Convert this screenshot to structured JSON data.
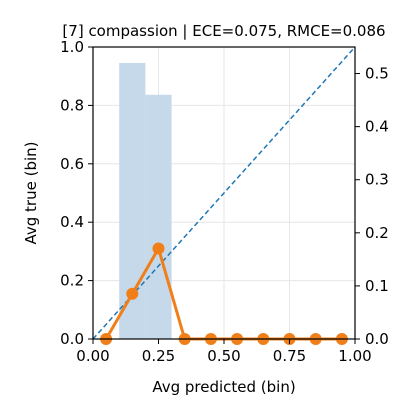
{
  "chart_data": {
    "type": "line",
    "title": "[7] compassion | ECE=0.075, RMCE=0.086",
    "xlabel": "Avg predicted (bin)",
    "ylabel": "Avg true (bin)",
    "xlim": [
      0,
      1
    ],
    "ylim": [
      0,
      1
    ],
    "y2lim": [
      0,
      0.55
    ],
    "grid": true,
    "x_ticks": [
      "0.00",
      "0.25",
      "0.50",
      "0.75",
      "1.00"
    ],
    "y_ticks": [
      "0.0",
      "0.2",
      "0.4",
      "0.6",
      "0.8",
      "1.0"
    ],
    "y2_ticks": [
      "0.0",
      "0.1",
      "0.2",
      "0.3",
      "0.4",
      "0.5"
    ],
    "histogram": {
      "axis": "secondary",
      "bin_edges": [
        0.1,
        0.2,
        0.3
      ],
      "values": [
        0.52,
        0.46
      ],
      "color": "#c6d9ea"
    },
    "diagonal": {
      "from": [
        0,
        0
      ],
      "to": [
        1,
        1
      ],
      "color": "#1f77b4"
    },
    "series": [
      {
        "color": "#f07f1a",
        "x": [
          0.05,
          0.15,
          0.25,
          0.35,
          0.45,
          0.55,
          0.65,
          0.75,
          0.85,
          0.95
        ],
        "y": [
          0.0,
          0.155,
          0.31,
          0.0,
          0.0,
          0.0,
          0.0,
          0.0,
          0.0,
          0.0
        ]
      }
    ]
  }
}
